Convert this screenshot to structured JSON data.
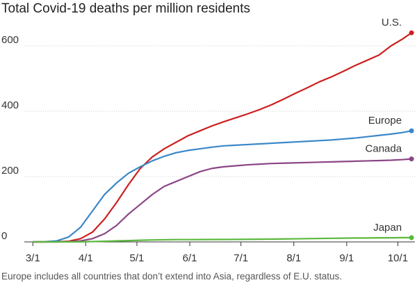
{
  "chart_data": {
    "type": "line",
    "title": "Total Covid-19 deaths per million residents",
    "note": "Europe includes all countries that don’t extend into Asia, regardless of E.U. status.",
    "x": [
      0,
      7,
      14,
      21,
      28,
      35,
      42,
      49,
      56,
      63,
      70,
      77,
      84,
      91,
      98,
      105,
      112,
      119,
      126,
      133,
      140,
      147,
      154,
      161,
      168,
      175,
      182,
      189,
      196,
      203,
      210,
      217,
      222
    ],
    "xlim": [
      -5,
      224
    ],
    "xticks": [
      {
        "value": 0,
        "label": "3/1"
      },
      {
        "value": 31,
        "label": "4/1"
      },
      {
        "value": 61,
        "label": "5/1"
      },
      {
        "value": 92,
        "label": "6/1"
      },
      {
        "value": 122,
        "label": "7/1"
      },
      {
        "value": 153,
        "label": "8/1"
      },
      {
        "value": 184,
        "label": "9/1"
      },
      {
        "value": 214,
        "label": "10/1"
      }
    ],
    "ylim": [
      0,
      650
    ],
    "yticks": [
      0,
      200,
      400,
      600
    ],
    "grid": true,
    "series": [
      {
        "name": "U.S.",
        "color": "#cc1f1f",
        "values": [
          0,
          0,
          0.5,
          2,
          10,
          30,
          70,
          120,
          175,
          225,
          260,
          285,
          305,
          325,
          340,
          355,
          368,
          380,
          392,
          405,
          420,
          437,
          455,
          472,
          490,
          505,
          522,
          540,
          556,
          572,
          600,
          622,
          640
        ]
      },
      {
        "name": "Europe",
        "color": "#3a87c8",
        "values": [
          0,
          0.5,
          3,
          15,
          45,
          95,
          145,
          180,
          210,
          230,
          248,
          262,
          273,
          280,
          285,
          290,
          294,
          296,
          298,
          300,
          302,
          304,
          306,
          308,
          310,
          312,
          315,
          318,
          322,
          326,
          330,
          335,
          340
        ]
      },
      {
        "name": "Canada",
        "color": "#8b4585",
        "values": [
          0,
          0,
          0,
          0.5,
          3,
          10,
          25,
          50,
          85,
          115,
          145,
          170,
          185,
          200,
          215,
          225,
          230,
          233,
          236,
          238,
          240,
          241,
          242,
          243,
          244,
          245,
          246,
          247,
          248,
          249,
          250,
          252,
          254
        ]
      },
      {
        "name": "Japan",
        "color": "#5cb83c",
        "values": [
          0,
          0,
          0,
          0.1,
          0.3,
          1,
          2,
          3,
          4,
          5,
          6,
          6.5,
          7,
          7,
          7.2,
          7.4,
          7.5,
          7.7,
          8,
          8.2,
          8.5,
          9,
          9.5,
          10,
          10.5,
          11,
          11.5,
          12,
          12,
          12.5,
          12.5,
          13,
          13
        ]
      }
    ]
  }
}
